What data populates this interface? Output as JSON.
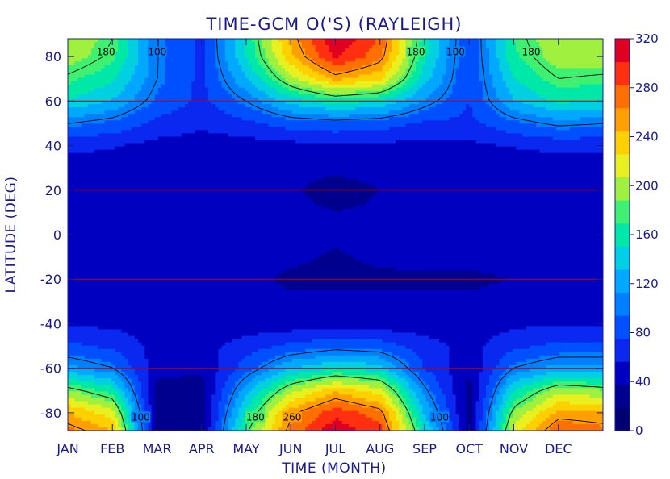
{
  "chart_data": {
    "type": "heatmap",
    "title": "TIME-GCM O('S) (RAYLEIGH)",
    "xlabel": "TIME (MONTH)",
    "ylabel": "LATITUDE (DEG)",
    "x_ticks": [
      "JAN",
      "FEB",
      "MAR",
      "APR",
      "MAY",
      "JUN",
      "JUL",
      "AUG",
      "SEP",
      "OCT",
      "NOV",
      "DEC"
    ],
    "y_ticks": [
      80,
      60,
      40,
      20,
      0,
      -20,
      -40,
      -60,
      -80
    ],
    "ylim": [
      -88,
      88
    ],
    "months": [
      "JAN",
      "FEB",
      "MAR",
      "APR",
      "MAY",
      "JUN",
      "JUL",
      "AUG",
      "SEP",
      "OCT",
      "NOV",
      "DEC",
      "JAN"
    ],
    "latitudes": [
      -88,
      -80,
      -70,
      -60,
      -50,
      -40,
      -30,
      -20,
      -10,
      0,
      10,
      20,
      30,
      40,
      50,
      60,
      70,
      80,
      88
    ],
    "values": [
      [
        270,
        245,
        30,
        30,
        175,
        270,
        315,
        290,
        150,
        30,
        215,
        280,
        270
      ],
      [
        245,
        215,
        30,
        30,
        155,
        255,
        295,
        270,
        130,
        30,
        190,
        250,
        245
      ],
      [
        190,
        160,
        30,
        30,
        125,
        200,
        240,
        215,
        105,
        30,
        150,
        200,
        190
      ],
      [
        120,
        100,
        45,
        40,
        85,
        130,
        150,
        140,
        75,
        40,
        100,
        120,
        120
      ],
      [
        80,
        70,
        50,
        50,
        65,
        80,
        90,
        85,
        65,
        50,
        70,
        80,
        80
      ],
      [
        55,
        52,
        50,
        48,
        45,
        45,
        45,
        45,
        45,
        45,
        52,
        55,
        55
      ],
      [
        45,
        45,
        45,
        44,
        42,
        40,
        40,
        40,
        40,
        40,
        42,
        45,
        45
      ],
      [
        45,
        45,
        44,
        44,
        42,
        35,
        35,
        35,
        35,
        35,
        38,
        42,
        45
      ],
      [
        45,
        45,
        44,
        50,
        44,
        40,
        36,
        40,
        42,
        42,
        42,
        44,
        45
      ],
      [
        45,
        45,
        46,
        50,
        45,
        42,
        40,
        42,
        44,
        44,
        44,
        45,
        45
      ],
      [
        46,
        46,
        46,
        50,
        44,
        42,
        38,
        40,
        44,
        44,
        44,
        45,
        46
      ],
      [
        46,
        46,
        45,
        47,
        42,
        40,
        30,
        38,
        42,
        42,
        43,
        45,
        46
      ],
      [
        48,
        47,
        46,
        45,
        42,
        42,
        42,
        42,
        42,
        43,
        44,
        46,
        48
      ],
      [
        62,
        58,
        50,
        48,
        48,
        50,
        52,
        52,
        50,
        52,
        58,
        62,
        62
      ],
      [
        100,
        90,
        70,
        60,
        70,
        85,
        90,
        85,
        72,
        70,
        90,
        105,
        100
      ],
      [
        150,
        130,
        90,
        70,
        100,
        140,
        160,
        150,
        110,
        75,
        130,
        155,
        150
      ],
      [
        175,
        155,
        100,
        70,
        130,
        200,
        250,
        230,
        140,
        75,
        150,
        180,
        175
      ],
      [
        200,
        175,
        100,
        72,
        150,
        240,
        305,
        270,
        155,
        75,
        165,
        200,
        200
      ],
      [
        205,
        180,
        100,
        72,
        155,
        250,
        320,
        280,
        160,
        75,
        170,
        205,
        205
      ]
    ],
    "contour_levels": [
      100,
      180,
      260
    ],
    "colorbar": {
      "min": 0,
      "max": 320,
      "ticks": [
        320,
        280,
        240,
        200,
        160,
        120,
        80,
        40,
        0
      ],
      "colors": [
        "#000070",
        "#00008f",
        "#0000c0",
        "#0a28f0",
        "#0050ff",
        "#0080ff",
        "#00a8ff",
        "#00d0e0",
        "#00e8a8",
        "#40f070",
        "#a0f040",
        "#e8f020",
        "#ffd000",
        "#ffa000",
        "#ff7000",
        "#ff3010",
        "#e00020"
      ]
    },
    "reference_lines_lat": [
      60,
      20,
      -20,
      -60
    ],
    "reference_line_color": "#c00000",
    "grid": false
  }
}
